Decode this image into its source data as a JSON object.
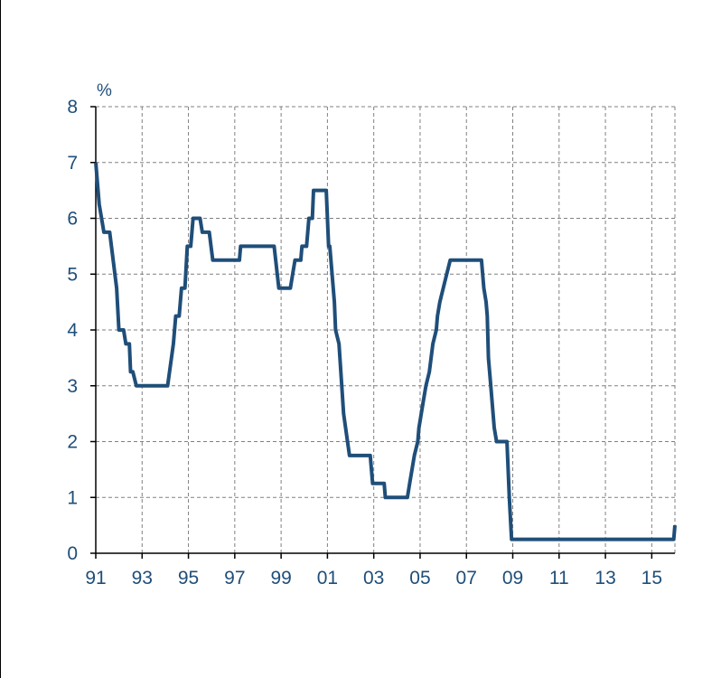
{
  "chart_data": {
    "type": "line",
    "ylabel": "%",
    "xlim": [
      1991,
      2016
    ],
    "ylim": [
      0,
      8
    ],
    "yticks": [
      0,
      1,
      2,
      3,
      4,
      5,
      6,
      7,
      8
    ],
    "xticks": [
      {
        "value": 1991,
        "label": "91"
      },
      {
        "value": 1993,
        "label": "93"
      },
      {
        "value": 1995,
        "label": "95"
      },
      {
        "value": 1997,
        "label": "97"
      },
      {
        "value": 1999,
        "label": "99"
      },
      {
        "value": 2001,
        "label": "01"
      },
      {
        "value": 2003,
        "label": "03"
      },
      {
        "value": 2005,
        "label": "05"
      },
      {
        "value": 2007,
        "label": "07"
      },
      {
        "value": 2009,
        "label": "09"
      },
      {
        "value": 2011,
        "label": "11"
      },
      {
        "value": 2013,
        "label": "13"
      },
      {
        "value": 2015,
        "label": "15"
      }
    ],
    "grid": true,
    "line_color": "#1f4e79",
    "series": [
      {
        "points": [
          [
            1991.0,
            7.0
          ],
          [
            1991.15,
            6.25
          ],
          [
            1991.35,
            5.75
          ],
          [
            1991.6,
            5.75
          ],
          [
            1991.9,
            4.75
          ],
          [
            1992.0,
            4.0
          ],
          [
            1992.2,
            4.0
          ],
          [
            1992.3,
            3.75
          ],
          [
            1992.45,
            3.75
          ],
          [
            1992.5,
            3.25
          ],
          [
            1992.6,
            3.25
          ],
          [
            1992.75,
            3.0
          ],
          [
            1994.1,
            3.0
          ],
          [
            1994.35,
            3.75
          ],
          [
            1994.45,
            4.25
          ],
          [
            1994.6,
            4.25
          ],
          [
            1994.7,
            4.75
          ],
          [
            1994.85,
            4.75
          ],
          [
            1994.95,
            5.5
          ],
          [
            1995.1,
            5.5
          ],
          [
            1995.2,
            6.0
          ],
          [
            1995.5,
            6.0
          ],
          [
            1995.6,
            5.75
          ],
          [
            1995.9,
            5.75
          ],
          [
            1996.05,
            5.25
          ],
          [
            1997.2,
            5.25
          ],
          [
            1997.25,
            5.5
          ],
          [
            1998.7,
            5.5
          ],
          [
            1998.9,
            4.75
          ],
          [
            1999.4,
            4.75
          ],
          [
            1999.5,
            5.0
          ],
          [
            1999.6,
            5.25
          ],
          [
            1999.85,
            5.25
          ],
          [
            1999.9,
            5.5
          ],
          [
            2000.1,
            5.5
          ],
          [
            2000.2,
            6.0
          ],
          [
            2000.35,
            6.0
          ],
          [
            2000.4,
            6.5
          ],
          [
            2000.95,
            6.5
          ],
          [
            2001.05,
            5.5
          ],
          [
            2001.1,
            5.5
          ],
          [
            2001.3,
            4.5
          ],
          [
            2001.35,
            4.0
          ],
          [
            2001.5,
            3.75
          ],
          [
            2001.7,
            2.5
          ],
          [
            2001.95,
            1.75
          ],
          [
            2002.85,
            1.75
          ],
          [
            2002.95,
            1.25
          ],
          [
            2003.45,
            1.25
          ],
          [
            2003.5,
            1.0
          ],
          [
            2004.45,
            1.0
          ],
          [
            2004.55,
            1.25
          ],
          [
            2004.65,
            1.5
          ],
          [
            2004.75,
            1.75
          ],
          [
            2004.9,
            2.0
          ],
          [
            2004.95,
            2.25
          ],
          [
            2005.15,
            2.75
          ],
          [
            2005.25,
            3.0
          ],
          [
            2005.4,
            3.25
          ],
          [
            2005.55,
            3.75
          ],
          [
            2005.7,
            4.0
          ],
          [
            2005.75,
            4.25
          ],
          [
            2005.85,
            4.5
          ],
          [
            2006.0,
            4.75
          ],
          [
            2006.15,
            5.0
          ],
          [
            2006.3,
            5.25
          ],
          [
            2007.65,
            5.25
          ],
          [
            2007.75,
            4.75
          ],
          [
            2007.85,
            4.5
          ],
          [
            2007.9,
            4.25
          ],
          [
            2007.95,
            3.5
          ],
          [
            2008.05,
            3.0
          ],
          [
            2008.2,
            2.25
          ],
          [
            2008.3,
            2.0
          ],
          [
            2008.75,
            2.0
          ],
          [
            2008.85,
            1.0
          ],
          [
            2008.95,
            0.25
          ],
          [
            2015.95,
            0.25
          ],
          [
            2016.0,
            0.5
          ]
        ]
      }
    ]
  }
}
